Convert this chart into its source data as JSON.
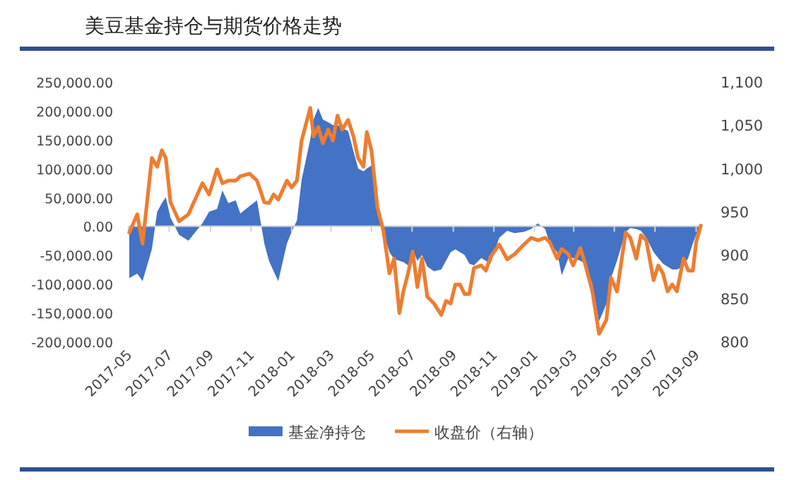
{
  "chart_data": {
    "type": "line",
    "title": "美豆基金持仓与期货价格走势",
    "x": [
      "2017-05-02",
      "2017-05-14",
      "2017-05-22",
      "2017-06-05",
      "2017-06-13",
      "2017-06-20",
      "2017-06-26",
      "2017-07-03",
      "2017-07-16",
      "2017-07-30",
      "2017-08-20",
      "2017-08-30",
      "2017-09-11",
      "2017-09-19",
      "2017-09-28",
      "2017-10-09",
      "2017-10-16",
      "2017-10-30",
      "2017-11-10",
      "2017-11-21",
      "2017-11-28",
      "2017-12-05",
      "2017-12-12",
      "2017-12-25",
      "2018-01-01",
      "2018-01-09",
      "2018-01-16",
      "2018-01-29",
      "2018-02-03",
      "2018-02-10",
      "2018-02-17",
      "2018-02-25",
      "2018-03-04",
      "2018-03-11",
      "2018-03-18",
      "2018-03-27",
      "2018-04-04",
      "2018-04-11",
      "2018-04-19",
      "2018-04-24",
      "2018-05-01",
      "2018-05-10",
      "2018-05-19",
      "2018-05-28",
      "2018-06-04",
      "2018-06-12",
      "2018-06-18",
      "2018-06-25",
      "2018-07-02",
      "2018-07-09",
      "2018-07-16",
      "2018-07-24",
      "2018-08-03",
      "2018-08-14",
      "2018-08-21",
      "2018-08-28",
      "2018-09-04",
      "2018-09-11",
      "2018-09-18",
      "2018-09-25",
      "2018-10-02",
      "2018-10-13",
      "2018-10-20",
      "2018-10-27",
      "2018-11-09",
      "2018-11-21",
      "2018-12-02",
      "2018-12-16",
      "2018-12-27",
      "2019-01-06",
      "2019-01-17",
      "2019-01-24",
      "2019-02-04",
      "2019-02-11",
      "2019-02-21",
      "2019-02-28",
      "2019-03-11",
      "2019-03-18",
      "2019-03-29",
      "2019-04-08",
      "2019-04-19",
      "2019-04-26",
      "2019-05-05",
      "2019-05-18",
      "2019-05-25",
      "2019-06-03",
      "2019-06-10",
      "2019-06-18",
      "2019-06-29",
      "2019-07-06",
      "2019-07-13",
      "2019-07-20",
      "2019-07-27",
      "2019-08-03",
      "2019-08-13",
      "2019-08-20",
      "2019-08-27",
      "2019-09-01",
      "2019-09-08"
    ],
    "series": [
      {
        "name": "基金净持仓",
        "type": "area",
        "color": "#4472c4",
        "values": [
          -90000,
          -82000,
          -95000,
          -40000,
          25000,
          40000,
          50000,
          15000,
          -15000,
          -25000,
          5000,
          25000,
          30000,
          62000,
          40000,
          45000,
          22000,
          35000,
          45000,
          -30000,
          -60000,
          -78000,
          -95000,
          -30000,
          -10000,
          10000,
          80000,
          150000,
          185000,
          205000,
          185000,
          180000,
          175000,
          175000,
          170000,
          165000,
          130000,
          100000,
          95000,
          100000,
          105000,
          20000,
          -10000,
          -45000,
          -57000,
          -60000,
          -62000,
          -68000,
          -41000,
          -60000,
          -50000,
          -70000,
          -78000,
          -75000,
          -60000,
          -45000,
          -40000,
          -45000,
          -50000,
          -65000,
          -68000,
          -55000,
          -60000,
          -65000,
          -20000,
          -8000,
          -12000,
          -10000,
          -5000,
          5000,
          -5000,
          -30000,
          -45000,
          -85000,
          -55000,
          -55000,
          -60000,
          -65000,
          -100000,
          -165000,
          -135000,
          -90000,
          -60000,
          -10000,
          -3000,
          -5000,
          -8000,
          -20000,
          -45000,
          -55000,
          -65000,
          -70000,
          -75000,
          -75000,
          -70000,
          -55000,
          -30000,
          -15000,
          0
        ]
      },
      {
        "name": "收盘价（右轴）",
        "type": "line",
        "axis": "y2",
        "color": "#ed7d31",
        "values": [
          926,
          947,
          913,
          1012,
          1002,
          1021,
          1012,
          961,
          939,
          947,
          983,
          970,
          999,
          983,
          986,
          986,
          991,
          994,
          986,
          961,
          960,
          970,
          964,
          986,
          978,
          986,
          1032,
          1070,
          1037,
          1048,
          1029,
          1045,
          1032,
          1061,
          1045,
          1056,
          1037,
          1012,
          1002,
          1042,
          1021,
          955,
          928,
          879,
          896,
          833,
          858,
          879,
          904,
          863,
          896,
          852,
          844,
          831,
          847,
          844,
          866,
          866,
          855,
          855,
          885,
          888,
          882,
          898,
          912,
          895,
          901,
          912,
          920,
          917,
          920,
          915,
          896,
          907,
          901,
          888,
          908,
          890,
          858,
          809,
          825,
          874,
          858,
          926,
          920,
          896,
          923,
          917,
          871,
          888,
          879,
          858,
          866,
          858,
          896,
          882,
          882,
          915,
          934
        ]
      }
    ],
    "xlim": [
      "2017-05-01",
      "2019-09-10"
    ],
    "xticks": [
      {
        "value": "2017-05-01",
        "label": "2017-05"
      },
      {
        "value": "2017-07-01",
        "label": "2017-07"
      },
      {
        "value": "2017-09-01",
        "label": "2017-09"
      },
      {
        "value": "2017-11-01",
        "label": "2017-11"
      },
      {
        "value": "2018-01-01",
        "label": "2018-01"
      },
      {
        "value": "2018-03-01",
        "label": "2018-03"
      },
      {
        "value": "2018-05-01",
        "label": "2018-05"
      },
      {
        "value": "2018-07-01",
        "label": "2018-07"
      },
      {
        "value": "2018-09-01",
        "label": "2018-09"
      },
      {
        "value": "2018-11-01",
        "label": "2018-11"
      },
      {
        "value": "2019-01-01",
        "label": "2019-01"
      },
      {
        "value": "2019-03-01",
        "label": "2019-03"
      },
      {
        "value": "2019-05-01",
        "label": "2019-05"
      },
      {
        "value": "2019-07-01",
        "label": "2019-07"
      },
      {
        "value": "2019-09-01",
        "label": "2019-09"
      }
    ],
    "ylim": [
      -200000,
      250000
    ],
    "yticks": [
      {
        "value": -200000,
        "label": "-200,000.00"
      },
      {
        "value": -150000,
        "label": "-150,000.00"
      },
      {
        "value": -100000,
        "label": "-100,000.00"
      },
      {
        "value": -50000,
        "label": "-50,000.00"
      },
      {
        "value": 0,
        "label": "0.00"
      },
      {
        "value": 50000,
        "label": "50,000.00"
      },
      {
        "value": 100000,
        "label": "100,000.00"
      },
      {
        "value": 150000,
        "label": "150,000.00"
      },
      {
        "value": 200000,
        "label": "200,000.00"
      },
      {
        "value": 250000,
        "label": "250,000.00"
      }
    ],
    "y2lim": [
      800,
      1100
    ],
    "y2ticks": [
      800,
      850,
      900,
      950,
      {
        "value": 1000,
        "label": "1,000"
      },
      {
        "value": 1050,
        "label": "1,050"
      },
      {
        "value": 1100,
        "label": "1,100"
      }
    ],
    "legend": "bottom"
  }
}
